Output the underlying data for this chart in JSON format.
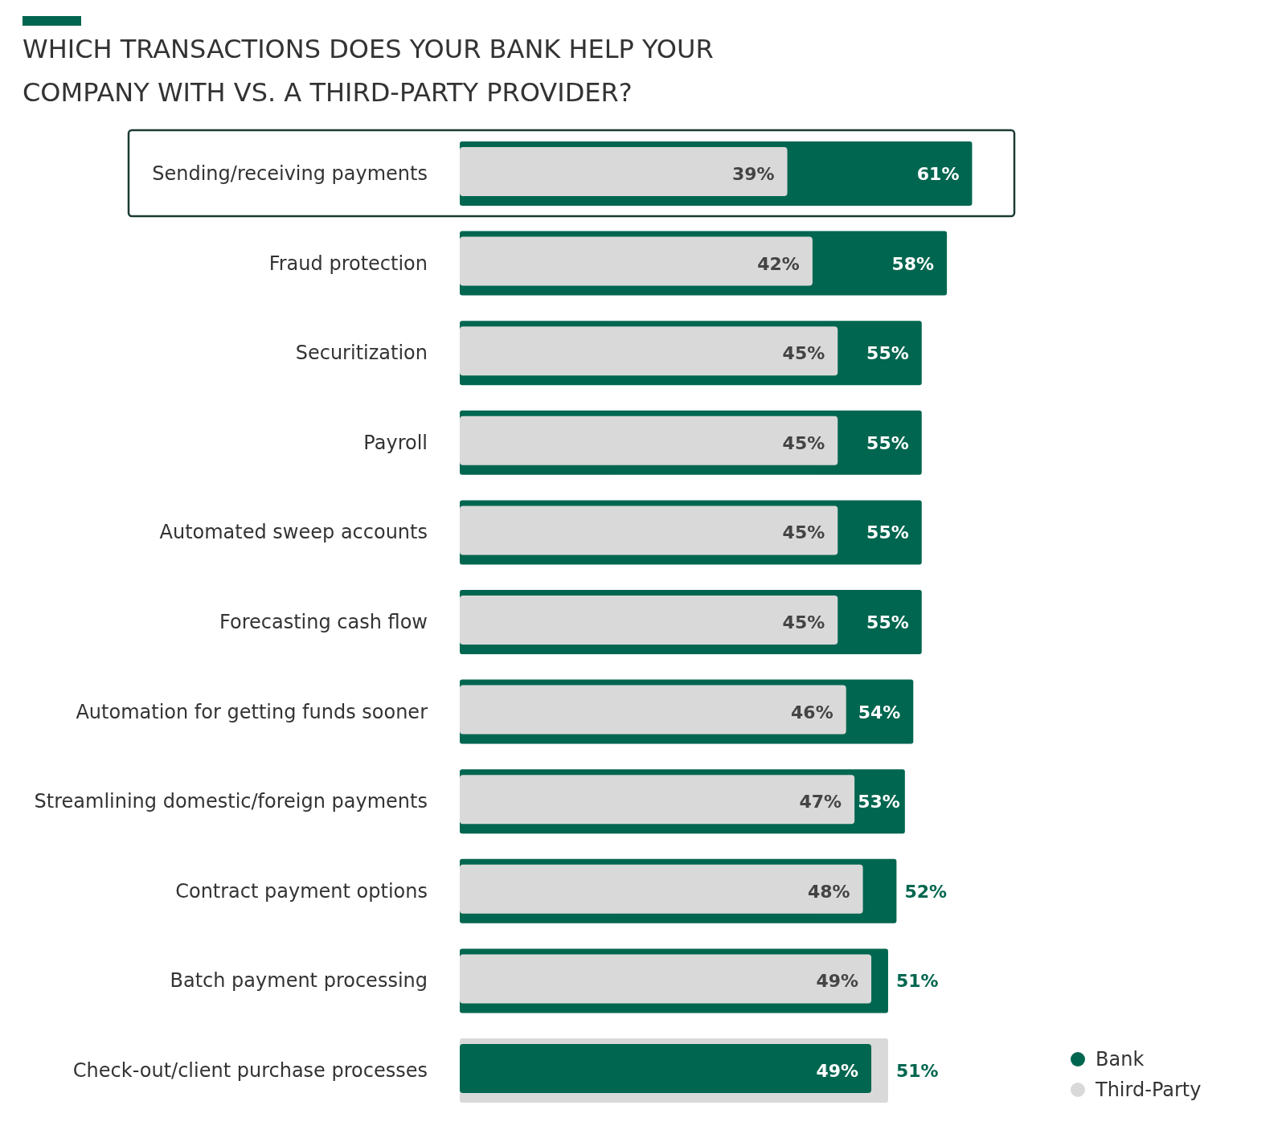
{
  "chart_data": {
    "type": "bar",
    "orientation": "horizontal",
    "title": "WHICH TRANSACTIONS DOES YOUR BANK HELP YOUR COMPANY WITH VS. A THIRD-PARTY PROVIDER?",
    "categories": [
      "Sending/receiving payments",
      "Fraud protection",
      "Securitization",
      "Payroll",
      "Automated sweep accounts",
      "Forecasting cash flow",
      "Automation for getting funds sooner",
      "Streamlining domestic/foreign payments",
      "Contract payment options",
      "Batch payment processing",
      "Check-out/client purchase processes"
    ],
    "series": [
      {
        "name": "Bank",
        "color": "#00664f",
        "values": [
          61,
          58,
          55,
          55,
          55,
          55,
          54,
          53,
          52,
          51,
          49
        ],
        "value_labels": [
          "61%",
          "58%",
          "55%",
          "55%",
          "55%",
          "55%",
          "54%",
          "53%",
          "52%",
          "51%",
          "49%"
        ]
      },
      {
        "name": "Third-Party",
        "color": "#d9d9d9",
        "values": [
          39,
          42,
          45,
          45,
          45,
          45,
          46,
          47,
          48,
          49,
          51
        ],
        "value_labels": [
          "39%",
          "42%",
          "45%",
          "45%",
          "45%",
          "45%",
          "46%",
          "47%",
          "48%",
          "49%",
          "51%"
        ]
      }
    ],
    "legend": "bottom right"
  }
}
